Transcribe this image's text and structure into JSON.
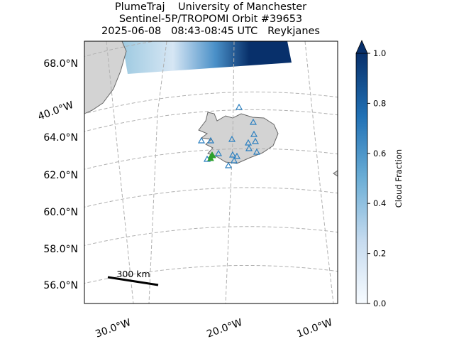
{
  "title": [
    "PlumeTraj    University of Manchester",
    "Sentinel-5P/TROPOMI Orbit #39653",
    "2025-06-08   08:43-08:45 UTC   Reykjanes"
  ],
  "map": {
    "lat_labels": [
      "68.0°N",
      "64.0°N",
      "62.0°N",
      "60.0°N",
      "58.0°N",
      "56.0°N"
    ],
    "lon_labels": [
      "40.0°W",
      "30.0°W",
      "20.0°W",
      "10.0°W"
    ],
    "scale_bar": "300 km"
  },
  "colorbar": {
    "label": "Cloud Fraction",
    "ylim": [
      0,
      1
    ],
    "yticks": [
      {
        "value": 0,
        "label": "0.0"
      },
      0.2,
      0.4,
      0.6,
      0.8,
      {
        "value": 1,
        "label": "1.0"
      }
    ]
  }
}
